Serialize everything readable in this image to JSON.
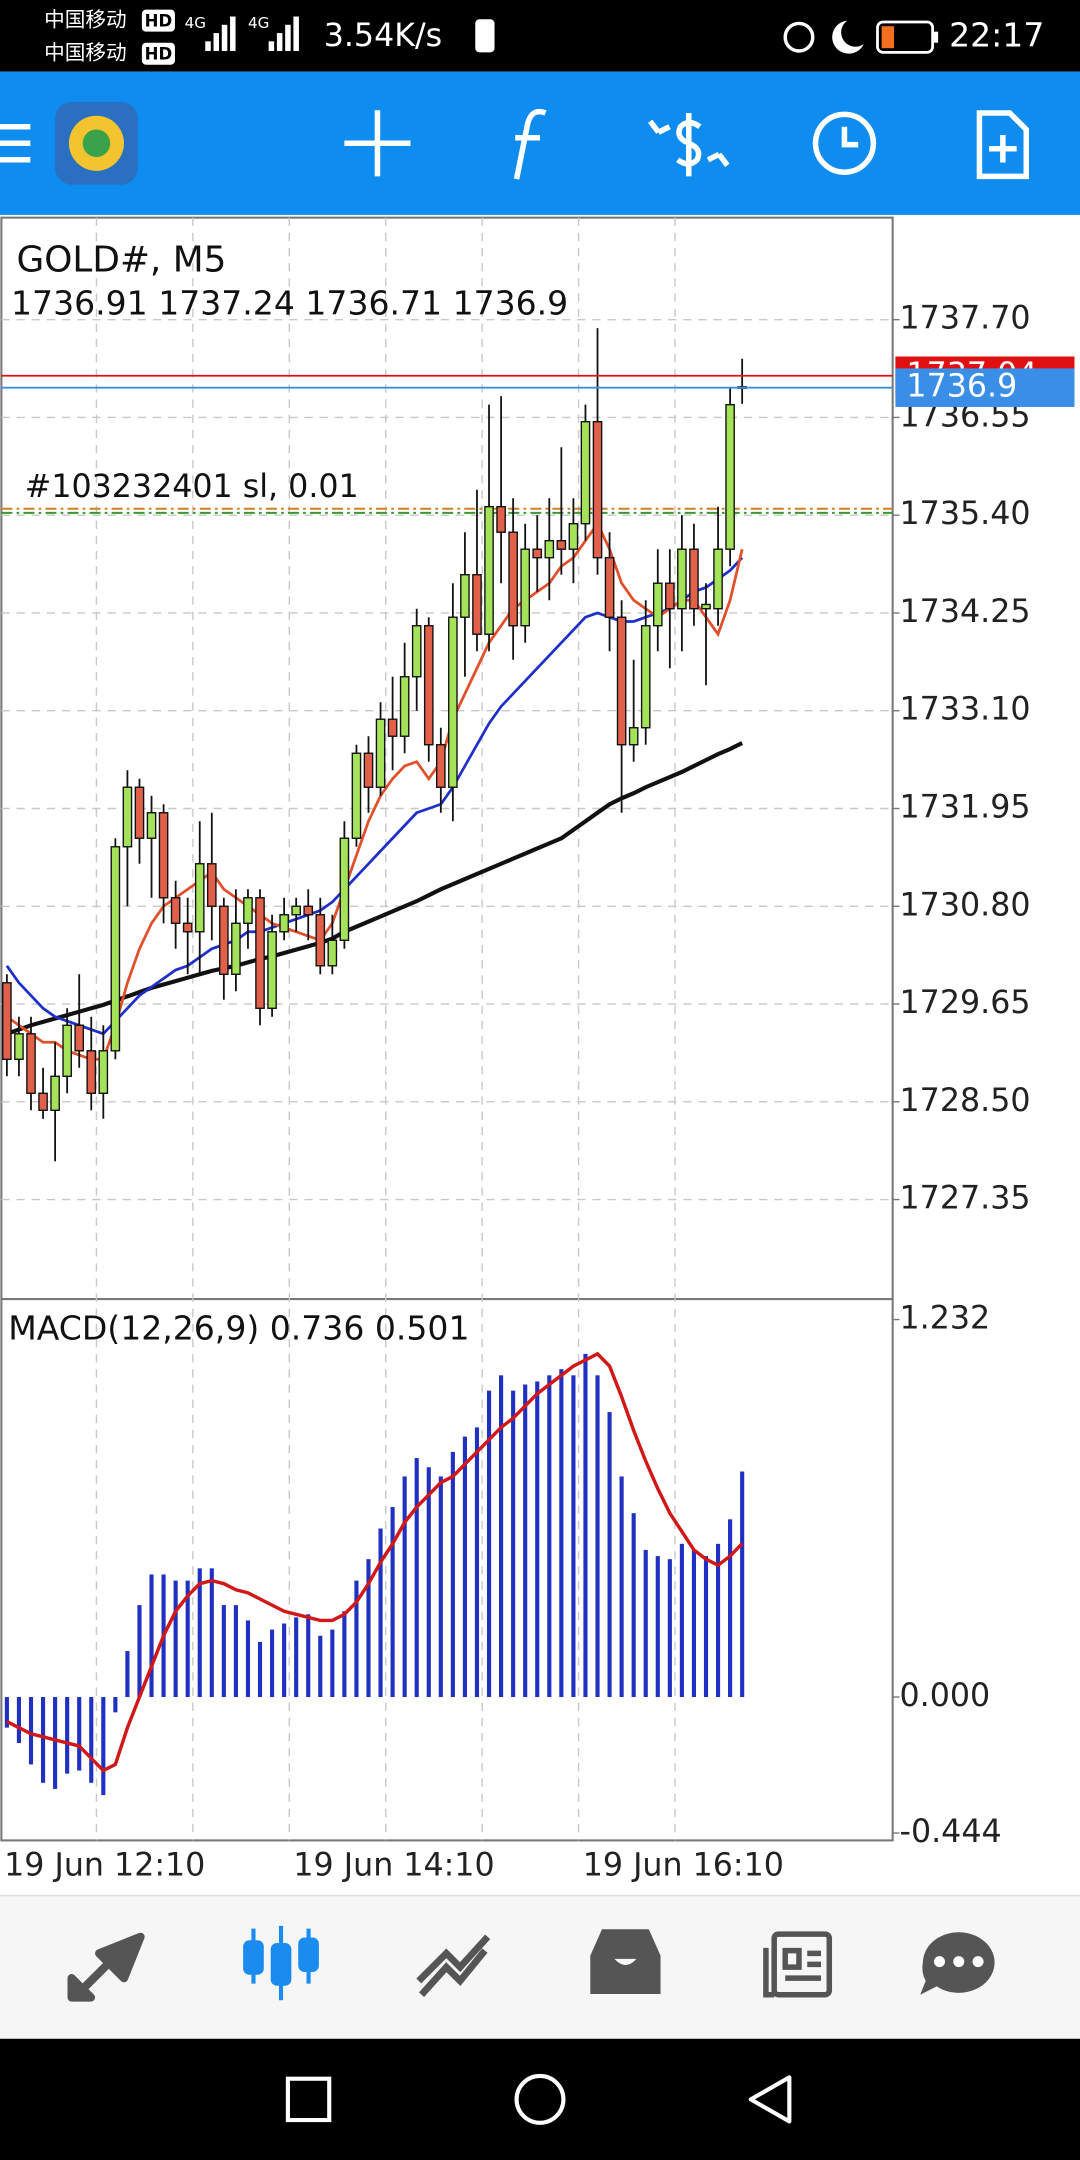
{
  "status_bar": {
    "carrier": "中国移动",
    "hd": "HD",
    "network": "4G",
    "speed": "3.54K/s",
    "time": "22:17"
  },
  "chart_data": [
    {
      "type": "candlestick",
      "title": "GOLD#, M5",
      "categories": [
        "19 Jun 12:10",
        null,
        null,
        null,
        null,
        null,
        null,
        null,
        null,
        null,
        null,
        null,
        null,
        null,
        null,
        null,
        null,
        null,
        null,
        null,
        null,
        null,
        null,
        null,
        "19 Jun 14:10",
        null,
        null,
        null,
        null,
        null,
        null,
        null,
        null,
        null,
        null,
        null,
        null,
        null,
        null,
        null,
        null,
        null,
        null,
        null,
        null,
        null,
        null,
        null,
        "19 Jun 16:10",
        null,
        null,
        null,
        null,
        null,
        null,
        null,
        null,
        null,
        null,
        null,
        null,
        null
      ],
      "open": [
        1729.9,
        1729.0,
        1729.3,
        1728.6,
        1728.4,
        1728.8,
        1729.4,
        1729.1,
        1728.6,
        1729.1,
        1731.5,
        1732.2,
        1731.6,
        1731.9,
        1730.9,
        1730.6,
        1730.5,
        1731.3,
        1730.8,
        1730.0,
        1730.6,
        1730.9,
        1729.6,
        1730.5,
        1730.7,
        1730.8,
        1730.7,
        1730.1,
        1730.4,
        1731.6,
        1732.6,
        1732.2,
        1733.0,
        1732.8,
        1733.5,
        1734.1,
        1732.7,
        1732.2,
        1734.2,
        1734.7,
        1734.0,
        1735.5,
        1735.2,
        1734.1,
        1735.0,
        1734.9,
        1735.1,
        1735.0,
        1735.3,
        1736.5,
        1734.9,
        1734.2,
        1732.7,
        1732.9,
        1734.1,
        1734.6,
        1734.3,
        1735.0,
        1734.3,
        1734.3,
        1735.0,
        1736.91
      ],
      "high": [
        1730.0,
        1729.5,
        1729.5,
        1728.9,
        1729.2,
        1729.6,
        1730.0,
        1729.5,
        1729.4,
        1731.6,
        1732.4,
        1732.3,
        1732.1,
        1732.0,
        1731.1,
        1730.9,
        1731.8,
        1731.9,
        1730.9,
        1731.0,
        1731.0,
        1731.0,
        1730.7,
        1730.9,
        1730.9,
        1731.0,
        1730.9,
        1730.7,
        1731.8,
        1732.7,
        1732.8,
        1733.2,
        1733.5,
        1733.9,
        1734.3,
        1734.2,
        1732.9,
        1734.6,
        1735.2,
        1735.7,
        1736.7,
        1736.8,
        1735.6,
        1735.3,
        1735.4,
        1735.6,
        1736.2,
        1735.6,
        1736.7,
        1737.6,
        1735.2,
        1734.4,
        1733.7,
        1734.4,
        1735.0,
        1735.0,
        1735.4,
        1735.3,
        1734.6,
        1735.5,
        1736.9,
        1737.24
      ],
      "low": [
        1728.8,
        1728.8,
        1728.4,
        1728.3,
        1727.8,
        1728.6,
        1728.9,
        1728.4,
        1728.3,
        1729.0,
        1730.8,
        1731.3,
        1730.9,
        1730.6,
        1730.3,
        1730.0,
        1730.0,
        1730.4,
        1729.7,
        1729.8,
        1730.3,
        1729.4,
        1729.5,
        1730.4,
        1730.5,
        1730.4,
        1730.0,
        1730.0,
        1730.3,
        1731.5,
        1731.9,
        1732.1,
        1732.4,
        1732.6,
        1733.1,
        1732.5,
        1731.9,
        1731.8,
        1733.5,
        1733.8,
        1733.8,
        1734.6,
        1733.7,
        1733.9,
        1734.5,
        1734.4,
        1734.7,
        1734.6,
        1735.1,
        1734.7,
        1733.8,
        1731.9,
        1732.5,
        1732.7,
        1733.8,
        1733.6,
        1733.8,
        1734.1,
        1733.4,
        1734.1,
        1734.8,
        1736.71
      ],
      "close": [
        1729.0,
        1729.3,
        1728.6,
        1728.4,
        1728.8,
        1729.4,
        1729.1,
        1728.6,
        1729.1,
        1731.5,
        1732.2,
        1731.6,
        1731.9,
        1730.9,
        1730.6,
        1730.5,
        1731.3,
        1730.8,
        1730.0,
        1730.6,
        1730.9,
        1729.6,
        1730.5,
        1730.7,
        1730.8,
        1730.7,
        1730.1,
        1730.4,
        1731.6,
        1732.6,
        1732.2,
        1733.0,
        1732.8,
        1733.5,
        1734.1,
        1732.7,
        1732.2,
        1734.2,
        1734.7,
        1734.0,
        1735.5,
        1735.2,
        1734.1,
        1735.0,
        1734.9,
        1735.1,
        1735.0,
        1735.3,
        1736.5,
        1734.9,
        1734.2,
        1732.7,
        1732.9,
        1734.1,
        1734.6,
        1734.3,
        1735.0,
        1734.3,
        1734.35,
        1735.0,
        1736.7,
        1736.9
      ],
      "up_color": "#a4e25a",
      "down_color": "#e0604a",
      "series": [
        {
          "color": "#111111",
          "values": [
            1729.3,
            1729.35,
            1729.4,
            1729.44,
            1729.48,
            1729.52,
            1729.56,
            1729.6,
            1729.64,
            1729.69,
            1729.74,
            1729.79,
            1729.84,
            1729.88,
            1729.92,
            1729.96,
            1730.0,
            1730.04,
            1730.07,
            1730.1,
            1730.14,
            1730.18,
            1730.21,
            1730.25,
            1730.29,
            1730.33,
            1730.37,
            1730.42,
            1730.5,
            1730.56,
            1730.62,
            1730.68,
            1730.74,
            1730.8,
            1730.86,
            1730.93,
            1731.0,
            1731.06,
            1731.12,
            1731.18,
            1731.24,
            1731.3,
            1731.36,
            1731.42,
            1731.48,
            1731.54,
            1731.6,
            1731.7,
            1731.8,
            1731.9,
            1732.0,
            1732.07,
            1732.13,
            1732.2,
            1732.26,
            1732.32,
            1732.38,
            1732.45,
            1732.52,
            1732.59,
            1732.65,
            1732.72
          ]
        },
        {
          "color": "#1f2fc8",
          "values": [
            1730.1,
            1729.9,
            1729.75,
            1729.6,
            1729.5,
            1729.45,
            1729.4,
            1729.35,
            1729.3,
            1729.45,
            1729.6,
            1729.75,
            1729.85,
            1729.95,
            1730.05,
            1730.1,
            1730.2,
            1730.3,
            1730.35,
            1730.4,
            1730.5,
            1730.5,
            1730.55,
            1730.6,
            1730.65,
            1730.7,
            1730.75,
            1730.85,
            1731.0,
            1731.15,
            1731.3,
            1731.45,
            1731.6,
            1731.75,
            1731.9,
            1731.95,
            1732.0,
            1732.2,
            1732.45,
            1732.7,
            1732.95,
            1733.15,
            1733.3,
            1733.45,
            1733.6,
            1733.75,
            1733.9,
            1734.05,
            1734.2,
            1734.25,
            1734.2,
            1734.15,
            1734.15,
            1734.2,
            1734.25,
            1734.3,
            1734.4,
            1734.5,
            1734.55,
            1734.65,
            1734.75,
            1734.9
          ]
        },
        {
          "color": "#e0502a",
          "values": [
            1729.5,
            1729.4,
            1729.3,
            1729.2,
            1729.2,
            1729.1,
            1729.05,
            1729.0,
            1729.0,
            1729.4,
            1729.9,
            1730.3,
            1730.6,
            1730.8,
            1730.9,
            1731.0,
            1731.1,
            1731.2,
            1731.0,
            1730.9,
            1730.8,
            1730.7,
            1730.6,
            1730.55,
            1730.5,
            1730.45,
            1730.4,
            1730.6,
            1731.0,
            1731.4,
            1731.8,
            1732.1,
            1732.3,
            1732.45,
            1732.5,
            1732.3,
            1732.5,
            1733.0,
            1733.3,
            1733.6,
            1733.9,
            1734.1,
            1734.3,
            1734.4,
            1734.5,
            1734.6,
            1734.8,
            1734.9,
            1735.1,
            1735.3,
            1735.0,
            1734.6,
            1734.4,
            1734.3,
            1734.2,
            1734.3,
            1734.4,
            1734.4,
            1734.2,
            1734.0,
            1734.4,
            1735.0
          ]
        }
      ],
      "price_lines": [
        {
          "value": 1737.04,
          "color": "#e01010"
        },
        {
          "value": 1736.9,
          "color": "#3a8ee6"
        }
      ],
      "order": {
        "label": "#103232401 sl, 0.01",
        "value": 1735.46
      },
      "ylim": [
        1726.18,
        1738.9
      ],
      "yticks": [
        {
          "value": 1737.7,
          "label": "1737.70"
        },
        1736.55,
        {
          "value": 1735.4,
          "label": "1735.40"
        },
        1734.25,
        {
          "value": 1733.1,
          "label": "1733.10"
        },
        1731.95,
        {
          "value": 1730.8,
          "label": "1730.80"
        },
        1729.65,
        {
          "value": 1728.5,
          "label": "1728.50"
        },
        1727.35
      ],
      "grid": true
    },
    {
      "type": "macd",
      "title": "MACD(12,26,9)",
      "histogram": {
        "color": "#2030c0",
        "values": [
          -0.1,
          -0.15,
          -0.22,
          -0.28,
          -0.3,
          -0.25,
          -0.24,
          -0.28,
          -0.32,
          -0.05,
          0.15,
          0.3,
          0.4,
          0.4,
          0.38,
          0.38,
          0.42,
          0.42,
          0.3,
          0.3,
          0.25,
          0.18,
          0.22,
          0.24,
          0.26,
          0.27,
          0.2,
          0.22,
          0.28,
          0.38,
          0.45,
          0.55,
          0.62,
          0.72,
          0.78,
          0.75,
          0.72,
          0.8,
          0.85,
          0.88,
          1,
          1.05,
          1,
          1.02,
          1.03,
          1.05,
          1.07,
          1.05,
          1.12,
          1.05,
          0.93,
          0.72,
          0.6,
          0.48,
          0.46,
          0.45,
          0.5,
          0.48,
          0.46,
          0.5,
          0.58,
          0.736
        ]
      },
      "signal": {
        "color": "#d01818",
        "values": [
          -0.08,
          -0.1,
          -0.12,
          -0.13,
          -0.14,
          -0.15,
          -0.16,
          -0.2,
          -0.24,
          -0.22,
          -0.1,
          0,
          0.1,
          0.2,
          0.28,
          0.33,
          0.37,
          0.38,
          0.37,
          0.35,
          0.34,
          0.32,
          0.3,
          0.28,
          0.27,
          0.26,
          0.25,
          0.25,
          0.27,
          0.31,
          0.37,
          0.44,
          0.5,
          0.57,
          0.62,
          0.66,
          0.7,
          0.72,
          0.76,
          0.8,
          0.84,
          0.88,
          0.91,
          0.95,
          0.99,
          1.02,
          1.05,
          1.08,
          1.1,
          1.12,
          1.08,
          0.98,
          0.87,
          0.77,
          0.68,
          0.6,
          0.54,
          0.48,
          0.45,
          0.43,
          0.46,
          0.501
        ]
      },
      "ylim": [
        -0.468,
        1.299
      ],
      "yticks": [
        1.232,
        {
          "value": 0,
          "label": "0.000"
        },
        -0.444
      ]
    }
  ]
}
